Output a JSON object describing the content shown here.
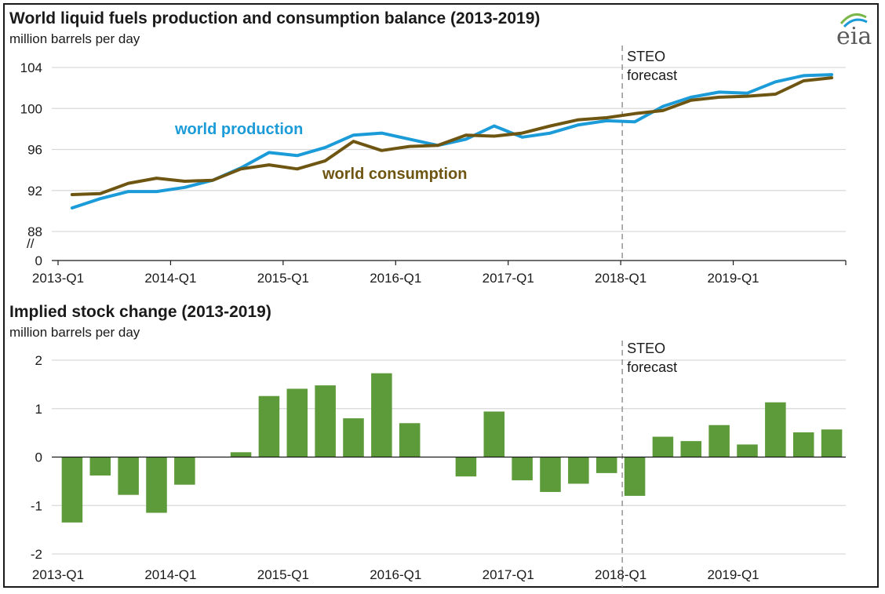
{
  "logo_text": "eia",
  "chart_data": [
    {
      "type": "line",
      "title": "World liquid fuels production and consumption balance (2013-2019)",
      "ylabel": "million barrels per day",
      "ylim": [
        87,
        104
      ],
      "yticks": [
        "104",
        "100",
        "96",
        "92",
        "88",
        "0"
      ],
      "axis_break": "//",
      "x_tick_labels": [
        "2013-Q1",
        "2014-Q1",
        "2015-Q1",
        "2016-Q1",
        "2017-Q1",
        "2018-Q1",
        "2019-Q1"
      ],
      "forecast_label_1": "STEO",
      "forecast_label_2": "forecast",
      "forecast_start_index": 20,
      "series": [
        {
          "name": "world production",
          "color": "#1b9bd7",
          "values": [
            90.3,
            91.2,
            91.9,
            91.9,
            92.3,
            93.0,
            94.2,
            95.7,
            95.4,
            96.2,
            97.4,
            97.6,
            97.0,
            96.4,
            97.0,
            98.3,
            97.2,
            97.6,
            98.4,
            98.8,
            98.7,
            100.2,
            101.1,
            101.6,
            101.5,
            102.6,
            103.2,
            103.3
          ]
        },
        {
          "name": "world consumption",
          "color": "#6e5612",
          "values": [
            91.6,
            91.7,
            92.7,
            93.2,
            92.9,
            93.0,
            94.1,
            94.5,
            94.1,
            94.9,
            96.8,
            95.9,
            96.3,
            96.4,
            97.4,
            97.3,
            97.6,
            98.3,
            98.9,
            99.1,
            99.5,
            99.8,
            100.8,
            101.1,
            101.2,
            101.4,
            102.7,
            103.0
          ]
        }
      ]
    },
    {
      "type": "bar",
      "title": "Implied stock change (2013-2019)",
      "ylabel": "million barrels per day",
      "ylim": [
        -2,
        2
      ],
      "yticks": [
        "2",
        "1",
        "0",
        "-1",
        "-2"
      ],
      "x_tick_labels": [
        "2013-Q1",
        "2014-Q1",
        "2015-Q1",
        "2016-Q1",
        "2017-Q1",
        "2018-Q1",
        "2019-Q1"
      ],
      "forecast_label_1": "STEO",
      "forecast_label_2": "forecast",
      "forecast_start_index": 20,
      "bar_color": "#5d9b3a",
      "values": [
        -1.35,
        -0.38,
        -0.78,
        -1.15,
        -0.57,
        0.0,
        0.1,
        1.26,
        1.41,
        1.48,
        0.8,
        1.73,
        0.7,
        0.0,
        -0.4,
        0.94,
        -0.48,
        -0.72,
        -0.55,
        -0.33,
        -0.8,
        0.42,
        0.33,
        0.66,
        0.26,
        1.13,
        0.51,
        0.57
      ]
    }
  ]
}
